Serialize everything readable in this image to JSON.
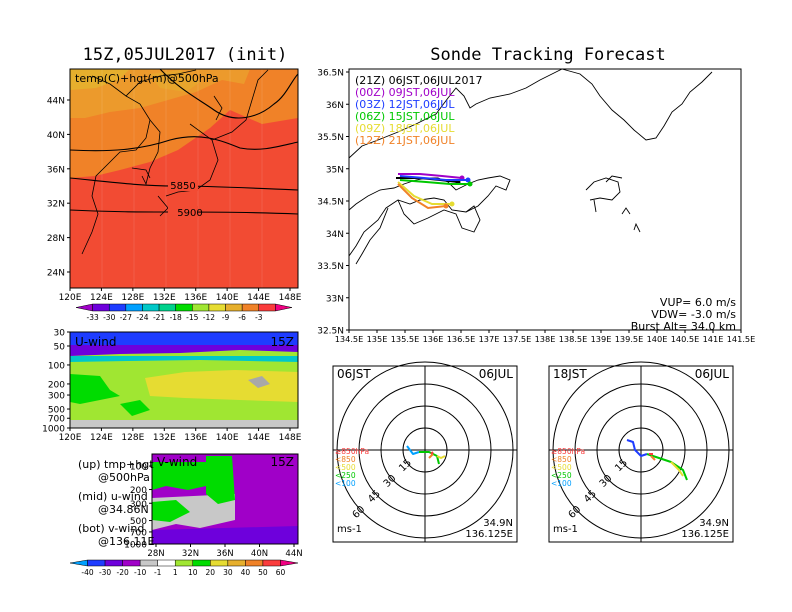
{
  "left_title": "15Z,05JUL2017 (init)",
  "right_title": "Sonde Tracking Forecast",
  "temp_panel": {
    "label": "temp(C)+hgt(m)@500hPa",
    "contour_labels": [
      "5850",
      "5900"
    ],
    "lat_ticks": [
      "44N",
      "40N",
      "36N",
      "32N",
      "28N",
      "24N"
    ],
    "lon_ticks": [
      "120E",
      "124E",
      "128E",
      "132E",
      "136E",
      "140E",
      "144E",
      "148E"
    ],
    "colorbar_labels": [
      "-33",
      "-30",
      "-27",
      "-24",
      "-21",
      "-18",
      "-15",
      "-12",
      "-9",
      "-6",
      "-3"
    ],
    "colorbar_colors": [
      "#a000c8",
      "#6e00dc",
      "#1e3cff",
      "#00a0ff",
      "#00c8c8",
      "#00d28c",
      "#00dc00",
      "#a0e632",
      "#e6dc32",
      "#e6af2d",
      "#f08228",
      "#fa3c3c",
      "#f00082"
    ]
  },
  "uwind_panel": {
    "label": "U-wind",
    "time": "15Z",
    "p_ticks": [
      "30",
      "50",
      "100",
      "200",
      "300",
      "500",
      "700",
      "1000"
    ],
    "lon_ticks": [
      "120E",
      "124E",
      "128E",
      "132E",
      "136E",
      "140E",
      "144E",
      "148E"
    ]
  },
  "vwind_panel": {
    "label": "V-wind",
    "time": "15Z",
    "p_ticks": [
      "100",
      "200",
      "300",
      "500",
      "700",
      "1000"
    ],
    "lat_ticks": [
      "28N",
      "32N",
      "36N",
      "40N",
      "44N"
    ]
  },
  "wind_colorbar": {
    "labels": [
      "-40",
      "-30",
      "-20",
      "-10",
      "-1",
      "1",
      "10",
      "20",
      "30",
      "40",
      "50",
      "60"
    ],
    "colors": [
      "#00a0ff",
      "#1e3cff",
      "#6e00dc",
      "#a000c8",
      "#c8c8c8",
      "#ffffff",
      "#a0e632",
      "#00dc00",
      "#e6dc32",
      "#e6af2d",
      "#f08228",
      "#fa3c3c",
      "#f00082"
    ]
  },
  "legend_text": [
    {
      "line1": "(up) tmp+hgt",
      "line2": "@500hPa"
    },
    {
      "line1": "(mid) u-wind",
      "line2": "@34.86N"
    },
    {
      "line1": "(bot) v-wind",
      "line2": "@136.11E"
    }
  ],
  "track_map": {
    "lat_ticks": [
      "36.5N",
      "36N",
      "35.5N",
      "35N",
      "34.5N",
      "34N",
      "33.5N",
      "33N",
      "32.5N"
    ],
    "lon_ticks": [
      "134.5E",
      "135E",
      "135.5E",
      "136E",
      "136.5E",
      "137E",
      "137.5E",
      "138E",
      "138.5E",
      "139E",
      "139.5E",
      "140E",
      "140.5E",
      "141E",
      "141.5E"
    ],
    "runs": [
      {
        "label": "(21Z) 06JST,06JUL2017",
        "color": "#000000"
      },
      {
        "label": "(00Z) 09JST,06JUL",
        "color": "#a000c8"
      },
      {
        "label": "(03Z) 12JST,06JUL",
        "color": "#1e3cff"
      },
      {
        "label": "(06Z) 15JST,06JUL",
        "color": "#00c800"
      },
      {
        "label": "(09Z) 18JST,06JUL",
        "color": "#e6dc32"
      },
      {
        "label": "(12Z) 21JST,06JUL",
        "color": "#f08228"
      }
    ],
    "params": [
      "VUP= 6.0 m/s",
      "VDW= -3.0 m/s",
      "Burst Alt= 34.0 km"
    ]
  },
  "hodo_left": {
    "time_label": "06JST",
    "date": "06JUL",
    "lat": "34.9N",
    "lon": "136.125E",
    "unit": "ms-1",
    "ring_labels": [
      "15",
      "30",
      "45",
      "60"
    ],
    "p_legend": [
      "≥850hPa",
      "<850",
      "<500",
      "<250",
      "<100"
    ]
  },
  "hodo_right": {
    "time_label": "18JST",
    "date": "06JUL",
    "lat": "34.9N",
    "lon": "136.125E",
    "unit": "ms-1",
    "ring_labels": [
      "15",
      "30",
      "45",
      "60"
    ],
    "p_legend": [
      "≥850hPa",
      "<850",
      "<500",
      "<250",
      "<100"
    ]
  },
  "p_legend_colors": [
    "#fa3c3c",
    "#f08228",
    "#e6dc32",
    "#00c800",
    "#00a0ff"
  ]
}
